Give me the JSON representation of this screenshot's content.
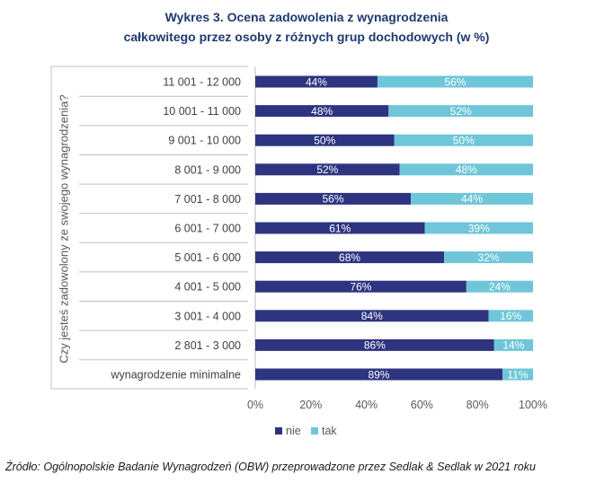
{
  "chart_data": {
    "type": "bar",
    "orientation": "horizontal",
    "stacked": "100%",
    "title_line1": "Wykres 3. Ocena zadowolenia z wynagrodzenia",
    "title_line2": "całkowitego przez osoby z różnych grup dochodowych (w %)",
    "ylabel": "Czy jesteś zadowolony ze swojego wynagrodzenia?",
    "categories": [
      "11 001 - 12 000",
      "10 001 - 11 000",
      "9 001 - 10 000",
      "8 001 - 9 000",
      "7 001 - 8 000",
      "6 001 - 7 000",
      "5 001 - 6 000",
      "4 001 - 5 000",
      "3 001 - 4 000",
      "2 801 - 3 000",
      "wynagrodzenie minimalne"
    ],
    "series": [
      {
        "name": "nie",
        "color": "#2e3480",
        "values": [
          44,
          48,
          50,
          52,
          56,
          61,
          68,
          76,
          84,
          86,
          89
        ]
      },
      {
        "name": "tak",
        "color": "#6ec6d8",
        "values": [
          56,
          52,
          50,
          48,
          44,
          39,
          32,
          24,
          16,
          14,
          11
        ]
      }
    ],
    "xticks": [
      "0%",
      "20%",
      "40%",
      "60%",
      "80%",
      "100%"
    ],
    "xlim": [
      0,
      100
    ],
    "legend": "bottom",
    "grid": false
  },
  "source": "Źródło: Ogólnopolskie Badanie Wynagrodzeń (OBW) przeprowadzone przez Sedlak & Sedlak w 2021 roku"
}
